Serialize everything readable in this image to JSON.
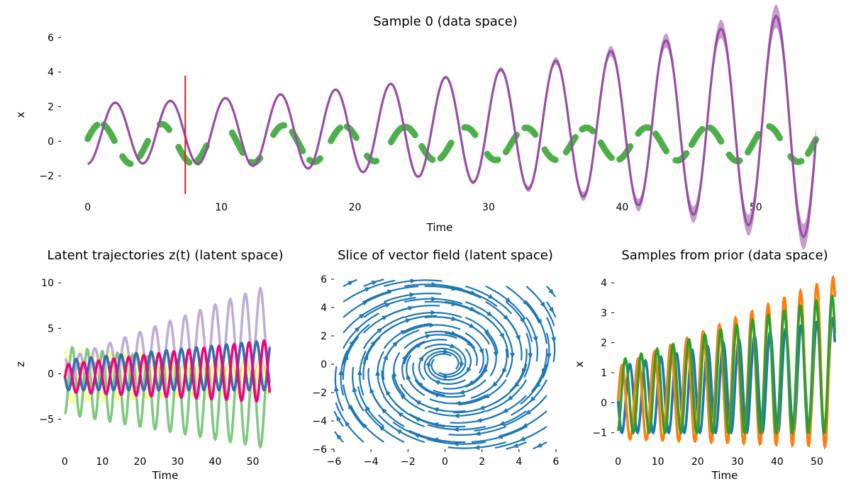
{
  "chart_data": [
    {
      "type": "line",
      "title": "Sample 0 (data space)",
      "xlabel": "Time",
      "ylabel": "x",
      "xlim": [
        -2,
        55
      ],
      "ylim": [
        -3.1,
        6.2
      ],
      "xticks": [
        0,
        10,
        20,
        30,
        40,
        50
      ],
      "yticks": [
        6,
        4,
        2,
        0,
        -2
      ],
      "grid": false,
      "observations": {
        "color": "#4daf4a",
        "segments": [
          [
            0,
            0.7
          ],
          [
            1.2,
            2.0
          ],
          [
            2.6,
            3.2
          ],
          [
            3.9,
            4.5
          ],
          [
            5.4,
            6.1
          ],
          [
            6.8,
            7.6
          ],
          [
            8.2,
            8.9
          ],
          [
            10.8,
            11.6
          ],
          [
            12.2,
            12.9
          ],
          [
            13.9,
            14.7
          ],
          [
            15.3,
            16.1
          ],
          [
            16.6,
            17.4
          ],
          [
            18.2,
            18.9
          ],
          [
            19.4,
            20.1
          ],
          [
            20.9,
            21.6
          ],
          [
            22.7,
            23.5
          ],
          [
            23.8,
            24.5
          ],
          [
            25.0,
            25.8
          ],
          [
            26.4,
            27.2
          ],
          [
            28.2,
            29.0
          ],
          [
            29.9,
            30.7
          ],
          [
            31.3,
            32.1
          ],
          [
            32.7,
            33.5
          ],
          [
            34.2,
            35.0
          ],
          [
            35.8,
            36.5
          ],
          [
            37.0,
            37.8
          ],
          [
            38.4,
            39.2
          ],
          [
            39.8,
            40.6
          ],
          [
            41.2,
            42.0
          ],
          [
            42.5,
            43.3
          ],
          [
            44.0,
            44.8
          ],
          [
            45.2,
            46.0
          ],
          [
            46.6,
            47.4
          ],
          [
            48.0,
            48.8
          ],
          [
            49.4,
            50.2
          ],
          [
            51.0,
            51.8
          ],
          [
            52.6,
            53.4
          ],
          [
            53.9,
            54.5
          ]
        ]
      },
      "prediction": {
        "color": "#984ea3",
        "x_end": 54.5
      },
      "cutoff_line": {
        "x": 7.3,
        "color": "#e41a1c"
      }
    },
    {
      "type": "line",
      "title": "Latent trajectories z(t) (latent space)",
      "xlabel": "Time",
      "ylabel": "z",
      "xlim": [
        -1,
        55
      ],
      "ylim": [
        -8.3,
        11.5
      ],
      "xticks": [
        0,
        10,
        20,
        30,
        40,
        50
      ],
      "yticks": [
        10,
        5,
        0,
        -5
      ],
      "series": [
        {
          "color": "#fdc086"
        },
        {
          "color": "#ffff99"
        },
        {
          "color": "#7fc97f"
        },
        {
          "color": "#beaed4"
        },
        {
          "color": "#386cb0"
        },
        {
          "color": "#f0027f"
        }
      ]
    },
    {
      "type": "streamplot",
      "title": "Slice of vector field (latent space)",
      "xlim": [
        -6,
        6
      ],
      "ylim": [
        -6,
        6
      ],
      "xticks": [
        -6,
        -4,
        -2,
        0,
        2,
        4,
        6
      ],
      "yticks": [
        6,
        4,
        2,
        0,
        -2,
        -4,
        -6
      ],
      "color": "#1f77b4"
    },
    {
      "type": "line",
      "title": "Samples from prior (data space)",
      "xlabel": "Time",
      "ylabel": "x",
      "xlim": [
        -1,
        55
      ],
      "ylim": [
        -1.55,
        4.45
      ],
      "xticks": [
        0,
        10,
        20,
        30,
        40,
        50
      ],
      "yticks": [
        4,
        3,
        2,
        1,
        0,
        -1
      ],
      "series": [
        {
          "color": "#1f77b4"
        },
        {
          "color": "#ff7f0e"
        },
        {
          "color": "#2ca02c"
        }
      ]
    }
  ]
}
